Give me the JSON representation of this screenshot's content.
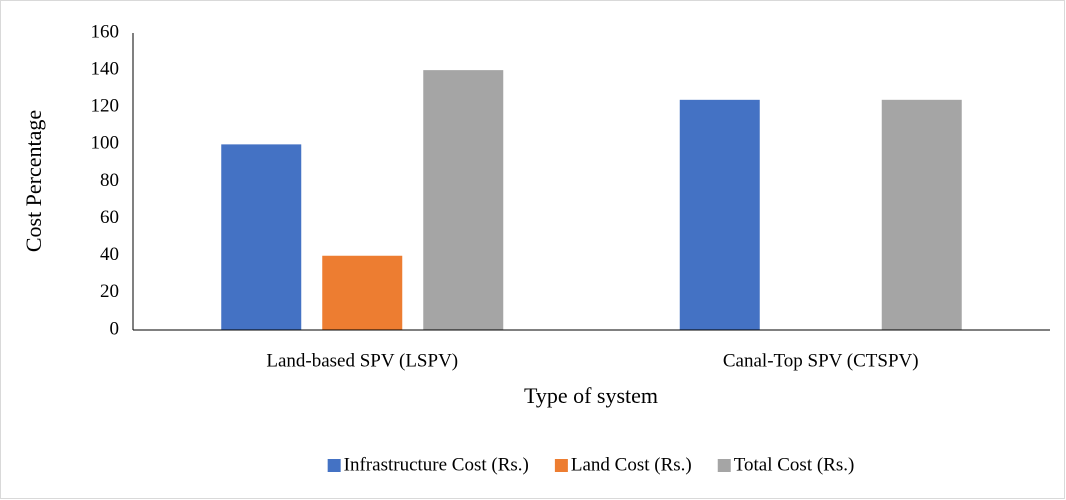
{
  "chart_data": {
    "type": "bar",
    "categories": [
      "Land-based SPV (LSPV)",
      "Canal-Top SPV (CTSPV)"
    ],
    "series": [
      {
        "name": "Infrastructure Cost (Rs.)",
        "color": "#4472c4",
        "values": [
          100,
          124
        ]
      },
      {
        "name": "Land Cost (Rs.)",
        "color": "#ed7d31",
        "values": [
          40,
          0
        ]
      },
      {
        "name": "Total Cost (Rs.)",
        "color": "#a5a5a5",
        "values": [
          140,
          124
        ]
      }
    ],
    "x_label": "Type of system",
    "y_label": "Cost Percentage",
    "ylim": [
      0,
      160
    ],
    "yticks": [
      0,
      20,
      40,
      60,
      80,
      100,
      120,
      140,
      160
    ],
    "grid": false,
    "legend": "bottom"
  }
}
